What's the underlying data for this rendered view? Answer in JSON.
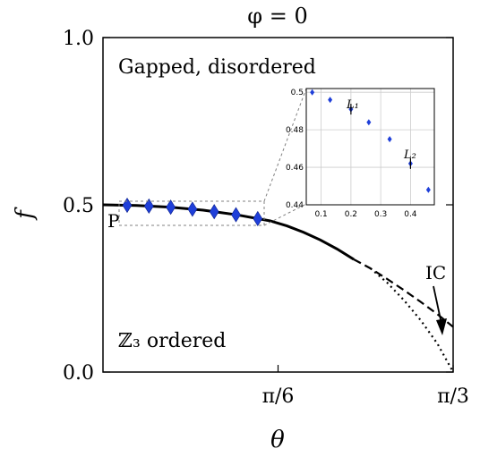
{
  "chart_data": [
    {
      "type": "line",
      "title": "φ = 0",
      "xlabel": "θ",
      "ylabel": "f",
      "xlim": [
        0.0,
        1.0472
      ],
      "ylim": [
        0.0,
        1.0
      ],
      "x_ticks": [
        {
          "value": 0.5236,
          "label": "π/6"
        },
        {
          "value": 1.0472,
          "label": "π/3"
        }
      ],
      "y_ticks": [
        {
          "value": 0.0,
          "label": "0.0"
        },
        {
          "value": 0.5,
          "label": "0.5"
        },
        {
          "value": 1.0,
          "label": "1.0"
        }
      ],
      "annotations": {
        "region_top": "Gapped, disordered",
        "region_bottom": "ℤ₃  ordered",
        "point_P": "P",
        "point_IC": "IC"
      },
      "series": [
        {
          "style": "solid",
          "x": [
            0.0,
            0.1,
            0.2,
            0.3,
            0.4,
            0.5,
            0.55,
            0.6,
            0.65,
            0.7,
            0.75
          ],
          "y": [
            0.5,
            0.498,
            0.493,
            0.484,
            0.47,
            0.452,
            0.437,
            0.418,
            0.395,
            0.368,
            0.337
          ]
        },
        {
          "style": "dashed",
          "x": [
            0.75,
            0.8,
            0.85,
            0.9,
            0.95,
            1.0,
            1.0472
          ],
          "y": [
            0.337,
            0.31,
            0.278,
            0.245,
            0.21,
            0.173,
            0.135
          ]
        },
        {
          "style": "dotted",
          "x": [
            0.8,
            0.85,
            0.9,
            0.95,
            1.0,
            1.0472
          ],
          "y": [
            0.31,
            0.267,
            0.215,
            0.155,
            0.085,
            0.0
          ]
        },
        {
          "style": "markers",
          "x": [
            0.07,
            0.13,
            0.2,
            0.27,
            0.33,
            0.4,
            0.47
          ],
          "y": [
            0.499,
            0.496,
            0.491,
            0.484,
            0.475,
            0.462,
            0.448
          ]
        }
      ]
    },
    {
      "type": "scatter",
      "xlim": [
        0.05,
        0.48
      ],
      "ylim": [
        0.44,
        0.502
      ],
      "x_ticks": [
        0.1,
        0.2,
        0.3,
        0.4
      ],
      "y_ticks": [
        0.44,
        0.46,
        0.48,
        0.5
      ],
      "labels": {
        "L1": "L₁",
        "L2": "L₂"
      },
      "series": [
        {
          "x": [
            0.07,
            0.13,
            0.2,
            0.26,
            0.33,
            0.4,
            0.46
          ],
          "y": [
            0.5,
            0.496,
            0.491,
            0.484,
            0.475,
            0.462,
            0.448
          ]
        }
      ],
      "vertical_markers": [
        0.2,
        0.4
      ]
    }
  ],
  "colors": {
    "marker": "#1f3fd9",
    "axis": "#000000",
    "grid": "#cccccc",
    "leader": "#808080"
  }
}
